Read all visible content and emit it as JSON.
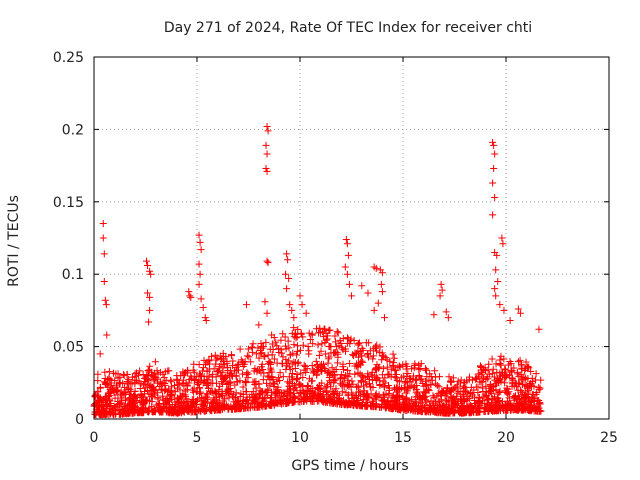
{
  "chart_data": {
    "type": "scatter",
    "title": "Day 271 of 2024, Rate Of TEC Index for receiver chti",
    "xlabel": "GPS time / hours",
    "ylabel": "ROTI / TECUs",
    "xlim": [
      0,
      25
    ],
    "ylim": [
      0,
      0.25
    ],
    "x_ticks": [
      "0",
      "5",
      "10",
      "15",
      "20",
      "25"
    ],
    "x_tick_values": [
      0,
      5,
      10,
      15,
      20,
      25
    ],
    "y_ticks": [
      "0",
      "0.05",
      "0.1",
      "0.15",
      "0.2",
      "0.25"
    ],
    "y_tick_values": [
      0,
      0.05,
      0.1,
      0.15,
      0.2,
      0.25
    ],
    "grid": true,
    "marker": "+",
    "color": "#ff0000",
    "data_extent_hours": [
      0,
      21.7
    ],
    "series": [
      {
        "name": "ROTI",
        "points": [
          [
            0.45,
            0.135
          ],
          [
            0.45,
            0.125
          ],
          [
            0.5,
            0.114
          ],
          [
            0.5,
            0.095
          ],
          [
            0.55,
            0.082
          ],
          [
            0.6,
            0.079
          ],
          [
            0.62,
            0.058
          ],
          [
            0.3,
            0.045
          ],
          [
            2.55,
            0.109
          ],
          [
            2.6,
            0.106
          ],
          [
            2.7,
            0.102
          ],
          [
            2.75,
            0.1
          ],
          [
            2.6,
            0.087
          ],
          [
            2.7,
            0.084
          ],
          [
            2.7,
            0.075
          ],
          [
            2.65,
            0.067
          ],
          [
            4.6,
            0.088
          ],
          [
            4.65,
            0.085
          ],
          [
            4.7,
            0.084
          ],
          [
            5.1,
            0.127
          ],
          [
            5.15,
            0.122
          ],
          [
            5.2,
            0.117
          ],
          [
            5.1,
            0.107
          ],
          [
            5.15,
            0.1
          ],
          [
            5.1,
            0.093
          ],
          [
            5.2,
            0.083
          ],
          [
            5.3,
            0.077
          ],
          [
            5.4,
            0.07
          ],
          [
            5.45,
            0.068
          ],
          [
            7.4,
            0.079
          ],
          [
            8.0,
            0.065
          ],
          [
            8.4,
            0.202
          ],
          [
            8.45,
            0.199
          ],
          [
            8.35,
            0.189
          ],
          [
            8.4,
            0.183
          ],
          [
            8.35,
            0.173
          ],
          [
            8.4,
            0.171
          ],
          [
            8.4,
            0.109
          ],
          [
            8.45,
            0.108
          ],
          [
            8.3,
            0.081
          ],
          [
            8.4,
            0.073
          ],
          [
            9.35,
            0.114
          ],
          [
            9.4,
            0.11
          ],
          [
            9.3,
            0.1
          ],
          [
            9.45,
            0.097
          ],
          [
            9.35,
            0.09
          ],
          [
            9.5,
            0.079
          ],
          [
            9.6,
            0.075
          ],
          [
            9.7,
            0.07
          ],
          [
            10.0,
            0.085
          ],
          [
            10.1,
            0.079
          ],
          [
            10.3,
            0.073
          ],
          [
            12.25,
            0.124
          ],
          [
            12.3,
            0.121
          ],
          [
            12.35,
            0.113
          ],
          [
            12.2,
            0.105
          ],
          [
            12.3,
            0.1
          ],
          [
            12.4,
            0.093
          ],
          [
            12.5,
            0.085
          ],
          [
            13.0,
            0.092
          ],
          [
            13.3,
            0.087
          ],
          [
            13.6,
            0.105
          ],
          [
            13.7,
            0.104
          ],
          [
            13.9,
            0.103
          ],
          [
            14.0,
            0.101
          ],
          [
            13.95,
            0.093
          ],
          [
            14.0,
            0.088
          ],
          [
            13.8,
            0.08
          ],
          [
            13.6,
            0.075
          ],
          [
            14.1,
            0.07
          ],
          [
            16.5,
            0.072
          ],
          [
            16.85,
            0.093
          ],
          [
            16.9,
            0.089
          ],
          [
            16.8,
            0.085
          ],
          [
            17.1,
            0.074
          ],
          [
            17.2,
            0.07
          ],
          [
            19.35,
            0.191
          ],
          [
            19.4,
            0.189
          ],
          [
            19.45,
            0.183
          ],
          [
            19.4,
            0.173
          ],
          [
            19.35,
            0.163
          ],
          [
            19.45,
            0.153
          ],
          [
            19.35,
            0.141
          ],
          [
            19.8,
            0.125
          ],
          [
            19.85,
            0.121
          ],
          [
            19.45,
            0.115
          ],
          [
            19.55,
            0.113
          ],
          [
            19.5,
            0.103
          ],
          [
            19.6,
            0.095
          ],
          [
            19.45,
            0.09
          ],
          [
            19.5,
            0.085
          ],
          [
            19.7,
            0.079
          ],
          [
            19.9,
            0.075
          ],
          [
            20.2,
            0.068
          ],
          [
            20.6,
            0.076
          ],
          [
            20.7,
            0.073
          ],
          [
            21.6,
            0.062
          ]
        ]
      }
    ],
    "dense_band": {
      "description": "dense cloud of low ROTI values",
      "segments": [
        [
          0.0,
          0.003,
          0.035
        ],
        [
          1.0,
          0.003,
          0.032
        ],
        [
          2.0,
          0.004,
          0.033
        ],
        [
          3.0,
          0.005,
          0.04
        ],
        [
          4.0,
          0.004,
          0.03
        ],
        [
          5.0,
          0.005,
          0.04
        ],
        [
          6.0,
          0.006,
          0.045
        ],
        [
          7.0,
          0.007,
          0.05
        ],
        [
          8.0,
          0.008,
          0.055
        ],
        [
          9.0,
          0.01,
          0.06
        ],
        [
          10.0,
          0.012,
          0.065
        ],
        [
          11.0,
          0.012,
          0.063
        ],
        [
          12.0,
          0.01,
          0.06
        ],
        [
          13.0,
          0.009,
          0.055
        ],
        [
          14.0,
          0.008,
          0.05
        ],
        [
          15.0,
          0.006,
          0.04
        ],
        [
          16.0,
          0.005,
          0.038
        ],
        [
          17.0,
          0.004,
          0.03
        ],
        [
          18.0,
          0.004,
          0.027
        ],
        [
          19.0,
          0.005,
          0.04
        ],
        [
          20.0,
          0.006,
          0.045
        ],
        [
          21.0,
          0.006,
          0.04
        ],
        [
          21.7,
          0.005,
          0.03
        ]
      ]
    }
  }
}
